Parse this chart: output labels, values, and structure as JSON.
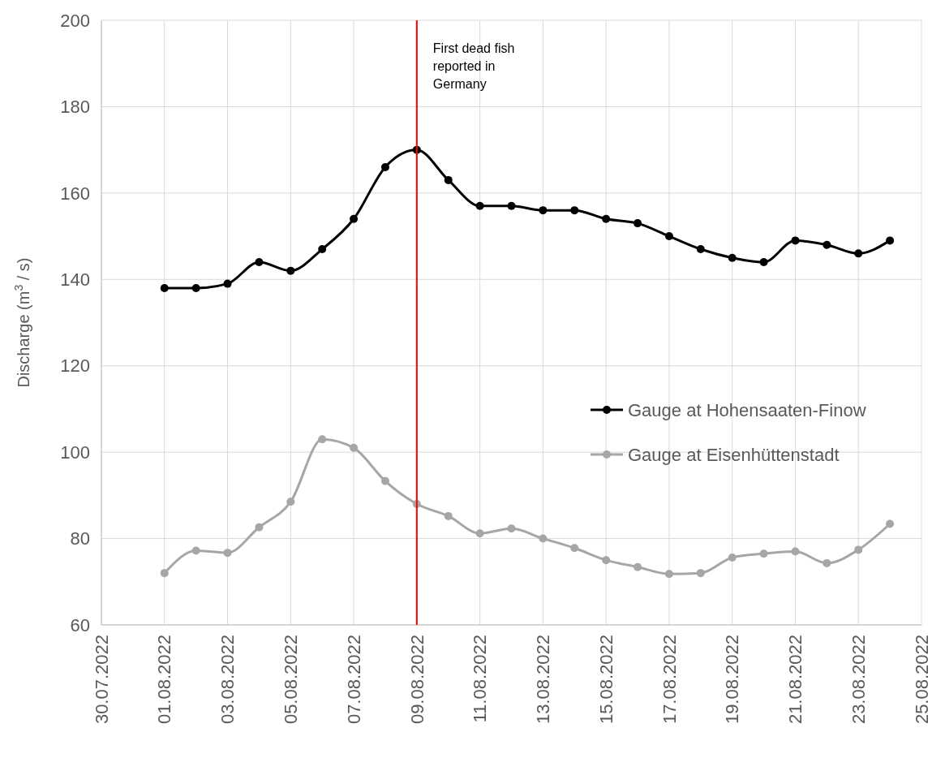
{
  "chart_data": {
    "type": "line",
    "ylabel": "Discharge (m$^{3}$ / s)",
    "x": [
      "2022-08-01",
      "2022-08-02",
      "2022-08-03",
      "2022-08-04",
      "2022-08-05",
      "2022-08-06",
      "2022-08-07",
      "2022-08-08",
      "2022-08-09",
      "2022-08-10",
      "2022-08-11",
      "2022-08-12",
      "2022-08-13",
      "2022-08-14",
      "2022-08-15",
      "2022-08-16",
      "2022-08-17",
      "2022-08-18",
      "2022-08-19",
      "2022-08-20",
      "2022-08-21",
      "2022-08-22",
      "2022-08-23",
      "2022-08-24"
    ],
    "series": [
      {
        "name": "Gauge at Hohensaaten-Finow",
        "color": "#000000",
        "values": [
          138,
          138,
          139,
          144,
          142,
          147,
          154,
          166,
          170,
          163,
          157,
          157,
          156,
          156,
          154,
          153,
          150,
          147,
          145,
          144,
          149,
          148,
          146,
          149
        ]
      },
      {
        "name": "Gauge at Eisenhüttenstadt",
        "color": "#a6a6a6",
        "values": [
          72,
          77.2,
          76.7,
          82.6,
          88.5,
          103,
          101,
          93.3,
          88,
          85.2,
          81.2,
          82.3,
          80,
          77.8,
          75,
          73.4,
          71.8,
          72,
          75.6,
          76.5,
          77,
          74.3,
          77.4,
          83.4
        ]
      }
    ],
    "xlim": [
      "2022-07-30",
      "2022-08-25"
    ],
    "xticks": [
      {
        "value": "2022-07-30",
        "label": "30.07.2022"
      },
      {
        "value": "2022-08-01",
        "label": "01.08.2022"
      },
      {
        "value": "2022-08-03",
        "label": "03.08.2022"
      },
      {
        "value": "2022-08-05",
        "label": "05.08.2022"
      },
      {
        "value": "2022-08-07",
        "label": "07.08.2022"
      },
      {
        "value": "2022-08-09",
        "label": "09.08.2022"
      },
      {
        "value": "2022-08-11",
        "label": "11.08.2022"
      },
      {
        "value": "2022-08-13",
        "label": "13.08.2022"
      },
      {
        "value": "2022-08-15",
        "label": "15.08.2022"
      },
      {
        "value": "2022-08-17",
        "label": "17.08.2022"
      },
      {
        "value": "2022-08-19",
        "label": "19.08.2022"
      },
      {
        "value": "2022-08-21",
        "label": "21.08.2022"
      },
      {
        "value": "2022-08-23",
        "label": "23.08.2022"
      },
      {
        "value": "2022-08-25",
        "label": "25.08.2022"
      }
    ],
    "ylim": [
      60,
      200
    ],
    "yticks": [
      60,
      80,
      100,
      120,
      140,
      160,
      180,
      200
    ],
    "ref_lines": [
      {
        "axis": "x",
        "value": "2022-08-09",
        "label": "First dead fish reported in Germany",
        "color": "#ff0000"
      }
    ],
    "grid": true,
    "legend": "right",
    "marker": "circle",
    "line_style": "solid"
  }
}
